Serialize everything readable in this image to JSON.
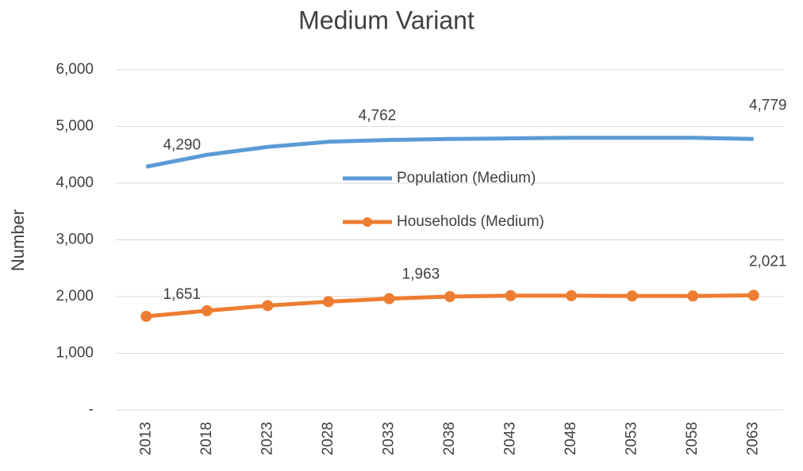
{
  "chart_data": {
    "type": "line",
    "title": "Medium Variant",
    "y_label": "Number",
    "categories": [
      "2013",
      "2018",
      "2023",
      "2028",
      "2033",
      "2038",
      "2043",
      "2048",
      "2053",
      "2058",
      "2063"
    ],
    "series": [
      {
        "name": "Population (Medium)",
        "color": "#5b9bd5",
        "markers": false,
        "values": [
          4290,
          4500,
          4640,
          4730,
          4762,
          4780,
          4790,
          4800,
          4800,
          4800,
          4779
        ],
        "value_labels": [
          "4,290",
          null,
          null,
          null,
          "4,762",
          null,
          null,
          null,
          null,
          null,
          "4,779"
        ]
      },
      {
        "name": "Households (Medium)",
        "color": "#ed7d31",
        "markers": true,
        "values": [
          1651,
          1750,
          1840,
          1910,
          1963,
          2000,
          2015,
          2015,
          2010,
          2010,
          2021
        ],
        "value_labels": [
          "1,651",
          null,
          null,
          null,
          "1,963",
          null,
          null,
          null,
          null,
          null,
          "2,021"
        ]
      }
    ],
    "ylim": [
      0,
      6000
    ],
    "yticks": [
      {
        "value": 0,
        "label": "-"
      },
      {
        "value": 1000,
        "label": "1,000"
      },
      {
        "value": 2000,
        "label": "2,000"
      },
      {
        "value": 3000,
        "label": "3,000"
      },
      {
        "value": 4000,
        "label": "4,000"
      },
      {
        "value": 5000,
        "label": "5,000"
      },
      {
        "value": 6000,
        "label": "6,000"
      }
    ],
    "grid": true
  }
}
